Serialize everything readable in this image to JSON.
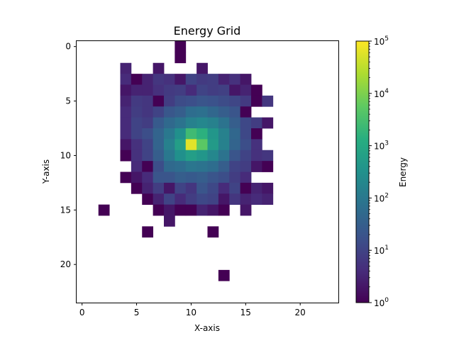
{
  "chart_data": {
    "type": "heatmap",
    "title": "Energy Grid",
    "xlabel": "X-axis",
    "ylabel": "Y-axis",
    "grid_size": 24,
    "xlim": [
      -0.5,
      23.5
    ],
    "ylim": [
      23.5,
      -0.5
    ],
    "y_inverted": true,
    "xticks": [
      "0",
      "5",
      "10",
      "15",
      "20"
    ],
    "yticks": [
      "0",
      "5",
      "10",
      "15",
      "20"
    ],
    "color_scale": "log",
    "colormap": "viridis",
    "colorbar": {
      "label": "Energy",
      "range": [
        1,
        100000
      ],
      "ticks": [
        {
          "base": "10",
          "exp": "0"
        },
        {
          "base": "10",
          "exp": "1"
        },
        {
          "base": "10",
          "exp": "2"
        },
        {
          "base": "10",
          "exp": "3"
        },
        {
          "base": "10",
          "exp": "4"
        },
        {
          "base": "10",
          "exp": "5"
        }
      ]
    },
    "grid": false,
    "values": [
      [
        0,
        0,
        0,
        0,
        0,
        0,
        0,
        0,
        0,
        1,
        0,
        0,
        0,
        0,
        0,
        0,
        0,
        0,
        0,
        0,
        0,
        0,
        0,
        0
      ],
      [
        0,
        0,
        0,
        0,
        0,
        0,
        0,
        0,
        0,
        1,
        0,
        0,
        0,
        0,
        0,
        0,
        0,
        0,
        0,
        0,
        0,
        0,
        0,
        0
      ],
      [
        0,
        0,
        0,
        0,
        3,
        0,
        0,
        2,
        0,
        0,
        0,
        2,
        0,
        0,
        0,
        0,
        0,
        0,
        0,
        0,
        0,
        0,
        0,
        0
      ],
      [
        0,
        0,
        0,
        0,
        4,
        1,
        3,
        6,
        5,
        2,
        10,
        7,
        8,
        3,
        5,
        2,
        0,
        0,
        0,
        0,
        0,
        0,
        0,
        0
      ],
      [
        0,
        0,
        0,
        0,
        2,
        3,
        3,
        5,
        7,
        8,
        4,
        10,
        8,
        9,
        2,
        3,
        1,
        0,
        0,
        0,
        0,
        0,
        0,
        0
      ],
      [
        0,
        0,
        0,
        0,
        3,
        7,
        6,
        1,
        8,
        14,
        16,
        20,
        18,
        14,
        11,
        7,
        1,
        6,
        0,
        0,
        0,
        0,
        0,
        0
      ],
      [
        0,
        0,
        0,
        0,
        4,
        8,
        6,
        10,
        22,
        30,
        60,
        70,
        45,
        30,
        20,
        1,
        0,
        0,
        0,
        0,
        0,
        0,
        0,
        0
      ],
      [
        0,
        0,
        0,
        0,
        4,
        10,
        8,
        25,
        50,
        80,
        150,
        200,
        150,
        80,
        30,
        12,
        8,
        2,
        0,
        0,
        0,
        0,
        0,
        0
      ],
      [
        0,
        0,
        0,
        0,
        4,
        10,
        15,
        40,
        100,
        300,
        2500,
        1500,
        400,
        150,
        45,
        12,
        1,
        0,
        0,
        0,
        0,
        0,
        0,
        0
      ],
      [
        0,
        0,
        0,
        0,
        2,
        5,
        10,
        40,
        150,
        600,
        60000,
        5000,
        500,
        150,
        40,
        15,
        5,
        0,
        0,
        0,
        0,
        0,
        0,
        0
      ],
      [
        0,
        0,
        0,
        0,
        1,
        5,
        10,
        30,
        100,
        300,
        600,
        400,
        200,
        80,
        20,
        10,
        5,
        6,
        0,
        0,
        0,
        0,
        0,
        0
      ],
      [
        0,
        0,
        0,
        0,
        0,
        4,
        1,
        15,
        50,
        60,
        90,
        80,
        60,
        30,
        10,
        8,
        2,
        1,
        0,
        0,
        0,
        0,
        0,
        0
      ],
      [
        0,
        0,
        0,
        0,
        1,
        2,
        4,
        20,
        20,
        30,
        25,
        30,
        20,
        15,
        8,
        4,
        0,
        0,
        0,
        0,
        0,
        0,
        0,
        0
      ],
      [
        0,
        0,
        0,
        0,
        0,
        1,
        3,
        8,
        2,
        10,
        6,
        20,
        12,
        4,
        10,
        1,
        3,
        2,
        0,
        0,
        0,
        0,
        0,
        0
      ],
      [
        0,
        0,
        0,
        0,
        0,
        0,
        1,
        3,
        10,
        4,
        8,
        12,
        10,
        2,
        6,
        3,
        4,
        3,
        0,
        0,
        0,
        0,
        0,
        0
      ],
      [
        0,
        0,
        1,
        0,
        0,
        0,
        0,
        1,
        2,
        1,
        1,
        3,
        2,
        1,
        0,
        2,
        0,
        0,
        0,
        0,
        0,
        0,
        0,
        0
      ],
      [
        0,
        0,
        0,
        0,
        0,
        0,
        0,
        0,
        2,
        0,
        0,
        0,
        0,
        0,
        0,
        0,
        0,
        0,
        0,
        0,
        0,
        0,
        0,
        0
      ],
      [
        0,
        0,
        0,
        0,
        0,
        0,
        1,
        0,
        0,
        0,
        0,
        0,
        1,
        0,
        0,
        0,
        0,
        0,
        0,
        0,
        0,
        0,
        0,
        0
      ],
      [
        0,
        0,
        0,
        0,
        0,
        0,
        0,
        0,
        0,
        0,
        0,
        0,
        0,
        0,
        0,
        0,
        0,
        0,
        0,
        0,
        0,
        0,
        0,
        0
      ],
      [
        0,
        0,
        0,
        0,
        0,
        0,
        0,
        0,
        0,
        0,
        0,
        0,
        0,
        0,
        0,
        0,
        0,
        0,
        0,
        0,
        0,
        0,
        0,
        0
      ],
      [
        0,
        0,
        0,
        0,
        0,
        0,
        0,
        0,
        0,
        0,
        0,
        0,
        0,
        0,
        0,
        0,
        0,
        0,
        0,
        0,
        0,
        0,
        0,
        0
      ],
      [
        0,
        0,
        0,
        0,
        0,
        0,
        0,
        0,
        0,
        0,
        0,
        0,
        0,
        1,
        0,
        0,
        0,
        0,
        0,
        0,
        0,
        0,
        0,
        0
      ],
      [
        0,
        0,
        0,
        0,
        0,
        0,
        0,
        0,
        0,
        0,
        0,
        0,
        0,
        0,
        0,
        0,
        0,
        0,
        0,
        0,
        0,
        0,
        0,
        0
      ],
      [
        0,
        0,
        0,
        0,
        0,
        0,
        0,
        0,
        0,
        0,
        0,
        0,
        0,
        0,
        0,
        0,
        0,
        0,
        0,
        0,
        0,
        0,
        0,
        0
      ]
    ]
  }
}
